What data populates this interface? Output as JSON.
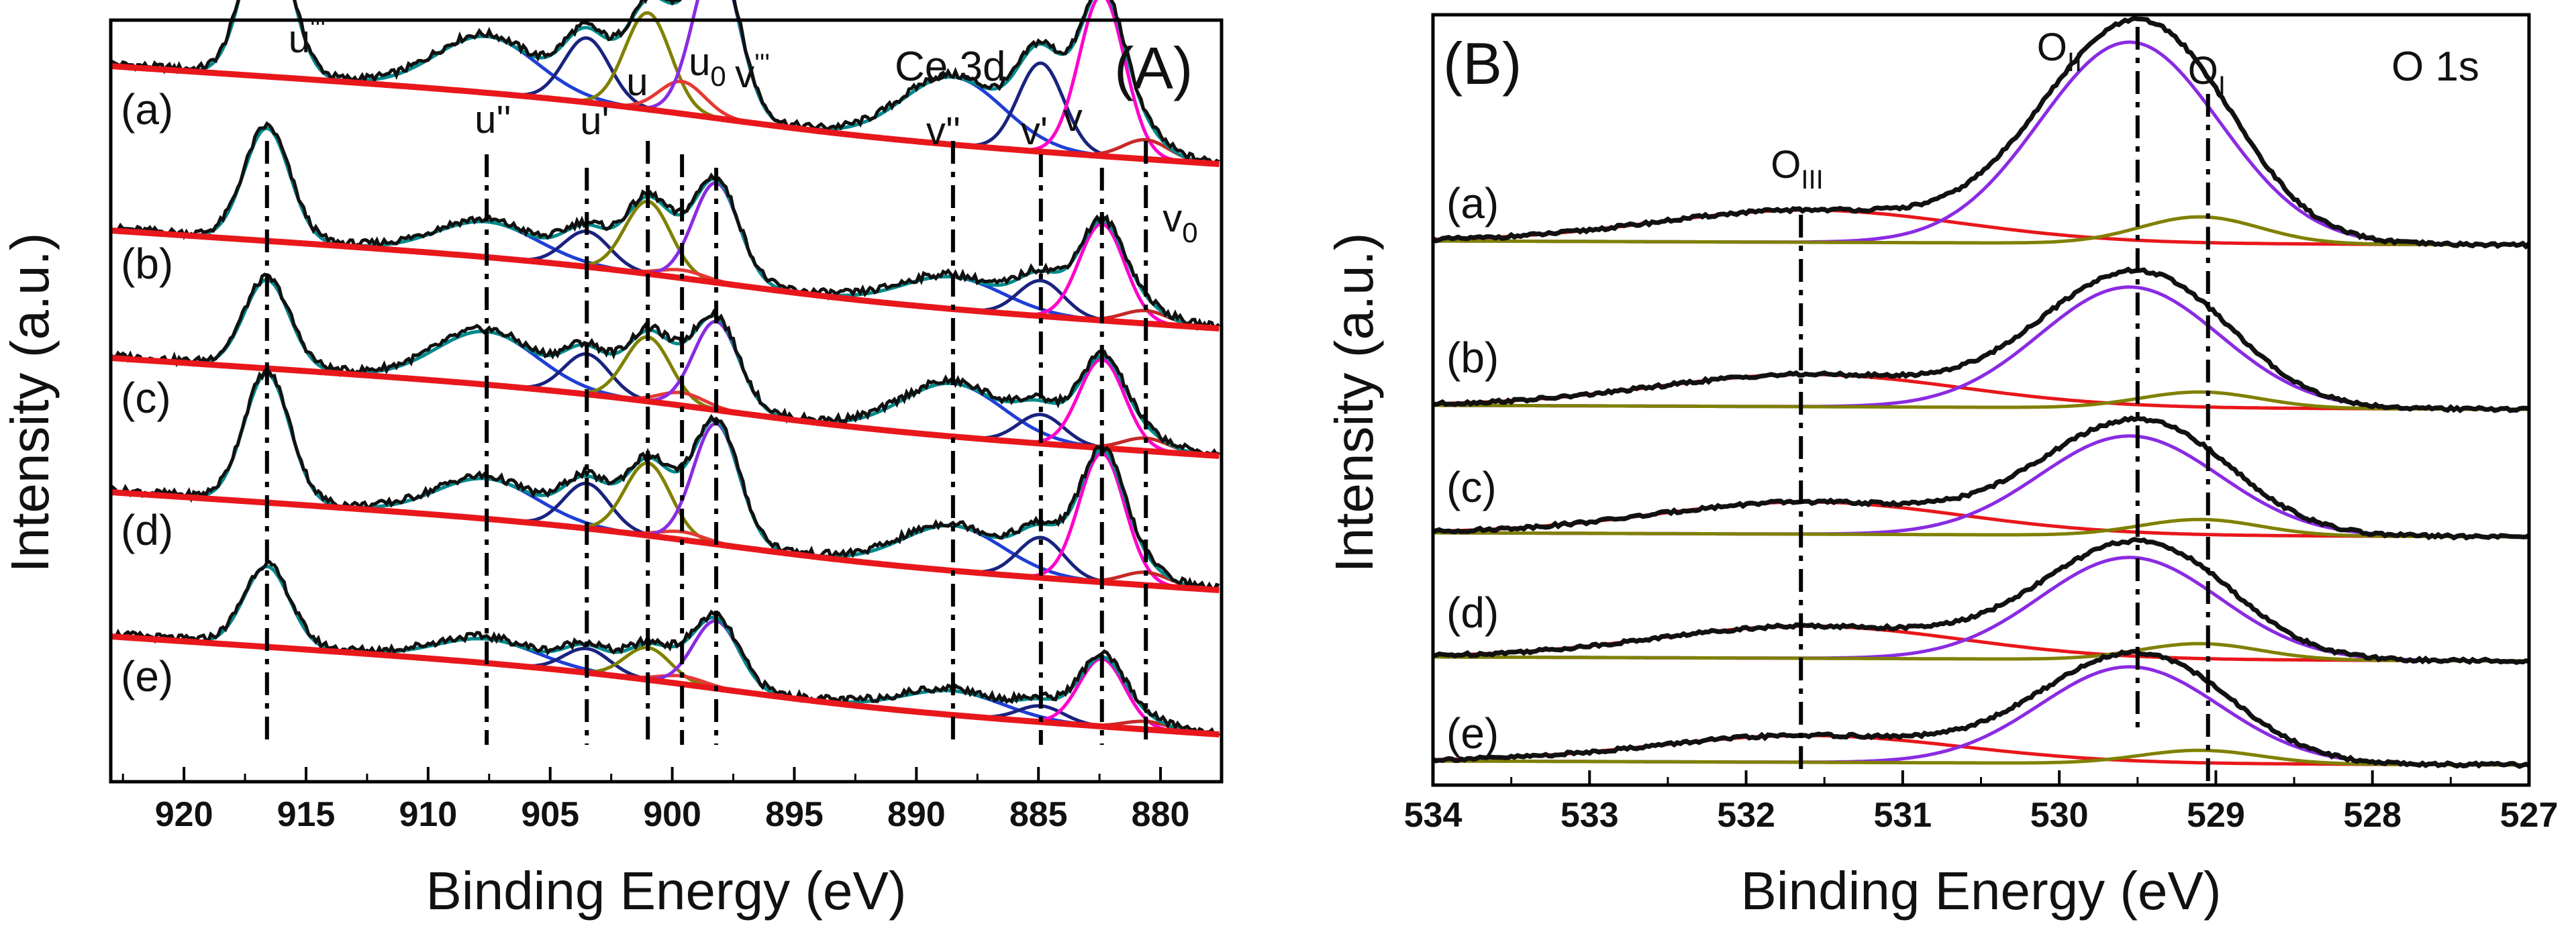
{
  "chart_data": [
    {
      "type": "line",
      "panel_label": "(A)",
      "title": "Ce 3d",
      "xlabel": "Binding Energy (eV)",
      "ylabel": "Intensity (a.u.)",
      "xlim": [
        923,
        877.5
      ],
      "x_reversed": true,
      "xticks": [
        920,
        915,
        910,
        905,
        900,
        895,
        890,
        885,
        880
      ],
      "xtick_labels": [
        "920",
        "915",
        "910",
        "905",
        "900",
        "895",
        "890",
        "885",
        "880"
      ],
      "y_ticks_shown": false,
      "samples": [
        "(a)",
        "(b)",
        "(c)",
        "(d)",
        "(e)"
      ],
      "peaks": [
        {
          "name": "u'''",
          "label_main": "u",
          "label_sup": "'''",
          "label_sub": "",
          "position": 916.6,
          "color": "#8a2be2"
        },
        {
          "name": "u''",
          "label_main": "u''",
          "label_sup": "",
          "label_sub": "",
          "position": 907.6,
          "color": "#1f3fd6"
        },
        {
          "name": "u'",
          "label_main": "u'",
          "label_sup": "",
          "label_sub": "",
          "position": 903.5,
          "color": "#1a237e"
        },
        {
          "name": "u",
          "label_main": "u",
          "label_sup": "",
          "label_sub": "",
          "position": 901.0,
          "color": "#808000"
        },
        {
          "name": "u0",
          "label_main": "u",
          "label_sup": "",
          "label_sub": "0",
          "position": 899.6,
          "color": "#e53935"
        },
        {
          "name": "v'''",
          "label_main": "v",
          "label_sup": "'''",
          "label_sub": "",
          "position": 898.2,
          "color": "#8a2be2"
        },
        {
          "name": "v''",
          "label_main": "v''",
          "label_sup": "",
          "label_sub": "",
          "position": 888.5,
          "color": "#1f3fd6"
        },
        {
          "name": "v'",
          "label_main": "v'",
          "label_sup": "",
          "label_sub": "",
          "position": 884.9,
          "color": "#1a237e"
        },
        {
          "name": "v",
          "label_main": "v",
          "label_sup": "",
          "label_sub": "",
          "position": 882.4,
          "color": "#ff00cc"
        },
        {
          "name": "v0",
          "label_main": "v",
          "label_sup": "",
          "label_sub": "0",
          "position": 880.6,
          "color": "#c62828"
        }
      ],
      "series_colors": {
        "raw": "#111111",
        "envelope": "#008b8b",
        "background": "#e8171b"
      },
      "fwhm_ev": 2.2,
      "amplitudes": {
        "(a)": [
          1.0,
          0.35,
          0.4,
          0.6,
          0.2,
          1.0,
          0.42,
          0.55,
          1.0,
          0.12
        ],
        "(b)": [
          0.7,
          0.22,
          0.22,
          0.45,
          0.05,
          0.62,
          0.2,
          0.22,
          0.6,
          0.08
        ],
        "(c)": [
          0.55,
          0.33,
          0.25,
          0.4,
          0.08,
          0.55,
          0.33,
          0.18,
          0.55,
          0.08
        ],
        "(d)": [
          0.8,
          0.25,
          0.28,
          0.45,
          0.05,
          0.75,
          0.28,
          0.25,
          0.8,
          0.08
        ],
        "(e)": [
          0.5,
          0.15,
          0.15,
          0.2,
          0.05,
          0.42,
          0.15,
          0.1,
          0.42,
          0.05
        ]
      },
      "background_sigmoid": {
        "center_ev": 898,
        "width_ev": 4,
        "height": 0.16,
        "slope_per_ev": 0.0033
      }
    },
    {
      "type": "line",
      "panel_label": "(B)",
      "title": "O 1s",
      "xlabel": "Binding Energy (eV)",
      "ylabel": "Intensity (a.u.)",
      "xlim": [
        534,
        527
      ],
      "x_reversed": true,
      "xticks": [
        534,
        533,
        532,
        531,
        530,
        529,
        528,
        527
      ],
      "xtick_labels": [
        "534",
        "533",
        "532",
        "531",
        "530",
        "529",
        "528",
        "527"
      ],
      "y_ticks_shown": false,
      "samples": [
        "(a)",
        "(b)",
        "(c)",
        "(d)",
        "(e)"
      ],
      "peaks": [
        {
          "name": "OIII",
          "label_main": "O",
          "label_sub": "III",
          "position": 531.65,
          "color": "#e8171b"
        },
        {
          "name": "OII",
          "label_main": "O",
          "label_sub": "II",
          "position": 529.5,
          "color": "#8a2be2"
        },
        {
          "name": "OI",
          "label_main": "O",
          "label_sub": "I",
          "position": 529.05,
          "color": "#808000"
        }
      ],
      "component_centers": {
        "OIII": 531.6,
        "OII": 529.55,
        "OI": 529.1
      },
      "component_fwhm": {
        "OIII": 2.3,
        "OII": 1.35,
        "OI": 0.9
      },
      "series_colors": {
        "raw": "#111111",
        "envelope": "#111111"
      },
      "amplitudes": {
        "(a)": [
          0.12,
          0.75,
          0.1
        ],
        "(b)": [
          0.12,
          0.45,
          0.06
        ],
        "(c)": [
          0.12,
          0.37,
          0.06
        ],
        "(d)": [
          0.12,
          0.38,
          0.06
        ],
        "(e)": [
          0.1,
          0.36,
          0.05
        ]
      }
    }
  ]
}
